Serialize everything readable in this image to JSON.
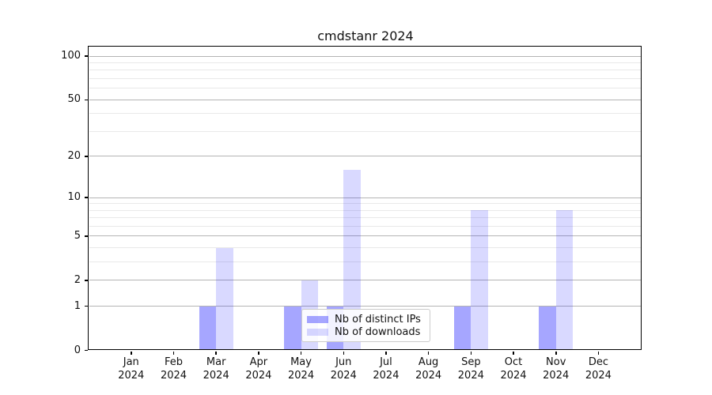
{
  "title": "cmdstanr 2024",
  "chart_data": {
    "type": "bar",
    "title": "cmdstanr 2024",
    "categories": [
      "Jan",
      "Feb",
      "Mar",
      "Apr",
      "May",
      "Jun",
      "Jul",
      "Aug",
      "Sep",
      "Oct",
      "Nov",
      "Dec"
    ],
    "year_label": "2024",
    "series": [
      {
        "name": "Nb of distinct IPs",
        "color": "rgba(0,0,255,0.35)",
        "values": [
          0,
          0,
          1,
          0,
          1,
          1,
          0,
          0,
          1,
          0,
          1,
          0
        ]
      },
      {
        "name": "Nb of downloads",
        "color": "rgba(0,0,255,0.15)",
        "values": [
          0,
          0,
          4,
          0,
          2,
          16,
          0,
          0,
          8,
          0,
          8,
          0
        ]
      }
    ],
    "xlabel": "",
    "ylabel": "",
    "yscale": "log1p",
    "ylim": [
      0,
      115
    ],
    "y_major_ticks": [
      0,
      1,
      2,
      5,
      10,
      20,
      50,
      100
    ],
    "y_tick_labels": [
      "0",
      "1",
      "2",
      "5",
      "10",
      "20",
      "50",
      "100"
    ],
    "y_minor_gridlines": [
      3,
      4,
      6,
      7,
      8,
      9,
      30,
      40,
      60,
      70,
      80,
      90
    ],
    "grid": true,
    "legend_position": "lower center"
  },
  "colors": {
    "background": "#ffffff",
    "axis": "#000000",
    "major_grid": "#b4b4b4",
    "minor_grid": "#e9e9e9",
    "bar_distinct_ips": "rgba(0,0,255,0.35)",
    "bar_downloads": "rgba(0,0,255,0.15)",
    "legend_border": "#cccccc"
  }
}
